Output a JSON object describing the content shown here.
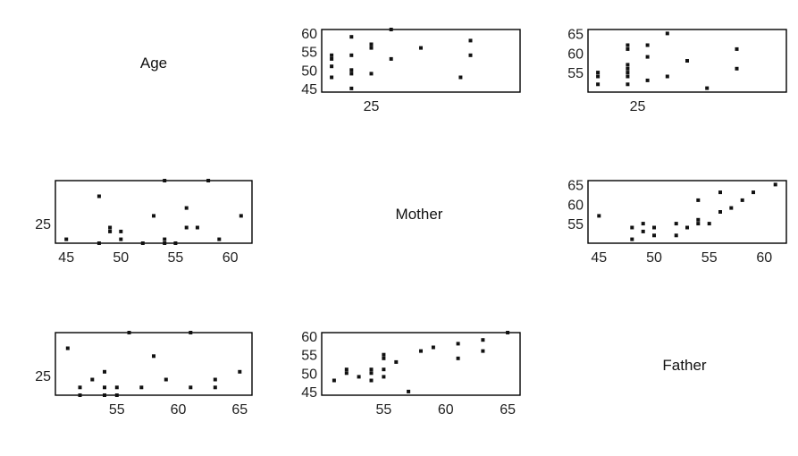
{
  "chart_data": {
    "type": "scatter",
    "title": "",
    "grid": false,
    "legend": "none",
    "colors": {
      "point": "#111111",
      "frame": "#000000"
    },
    "variables": [
      "Age",
      "Mother",
      "Father"
    ],
    "pairs": [
      {
        "id": "mother-vs-age",
        "x_var": "Age",
        "y_var": "Mother",
        "xlim": [
          20,
          40
        ],
        "ylim": [
          44,
          61
        ],
        "x_ticks": [
          25
        ],
        "y_ticks": [
          45,
          50,
          55,
          60
        ],
        "points": [
          [
            21,
            48
          ],
          [
            21,
            51
          ],
          [
            21,
            53
          ],
          [
            21,
            54
          ],
          [
            23,
            45
          ],
          [
            23,
            49
          ],
          [
            23,
            50
          ],
          [
            23,
            54
          ],
          [
            23,
            59
          ],
          [
            25,
            49
          ],
          [
            25,
            56
          ],
          [
            25,
            57
          ],
          [
            27,
            53
          ],
          [
            27,
            61
          ],
          [
            30,
            56
          ],
          [
            34,
            48
          ],
          [
            35,
            54
          ],
          [
            35,
            58
          ]
        ]
      },
      {
        "id": "father-vs-age",
        "x_var": "Age",
        "y_var": "Father",
        "xlim": [
          20,
          40
        ],
        "ylim": [
          50,
          66
        ],
        "x_ticks": [
          25
        ],
        "y_ticks": [
          55,
          60,
          65
        ],
        "points": [
          [
            21,
            52
          ],
          [
            21,
            54
          ],
          [
            21,
            55
          ],
          [
            24,
            52
          ],
          [
            24,
            54
          ],
          [
            24,
            55
          ],
          [
            24,
            56
          ],
          [
            24,
            57
          ],
          [
            24,
            61
          ],
          [
            24,
            62
          ],
          [
            26,
            53
          ],
          [
            26,
            59
          ],
          [
            26,
            62
          ],
          [
            28,
            54
          ],
          [
            28,
            65
          ],
          [
            30,
            58
          ],
          [
            32,
            51
          ],
          [
            35,
            56
          ],
          [
            35,
            61
          ]
        ]
      },
      {
        "id": "age-vs-mother",
        "x_var": "Mother",
        "y_var": "Age",
        "xlim": [
          44,
          62
        ],
        "ylim": [
          20,
          36
        ],
        "x_ticks": [
          45,
          50,
          55,
          60
        ],
        "y_ticks": [
          25
        ],
        "points": [
          [
            45,
            21
          ],
          [
            48,
            20
          ],
          [
            48,
            32
          ],
          [
            49,
            24
          ],
          [
            49,
            23
          ],
          [
            50,
            21
          ],
          [
            50,
            23
          ],
          [
            52,
            20
          ],
          [
            53,
            27
          ],
          [
            54,
            20
          ],
          [
            54,
            21
          ],
          [
            54,
            36
          ],
          [
            55,
            20
          ],
          [
            56,
            24
          ],
          [
            56,
            29
          ],
          [
            57,
            24
          ],
          [
            58,
            36
          ],
          [
            59,
            21
          ],
          [
            61,
            27
          ]
        ]
      },
      {
        "id": "father-vs-mother",
        "x_var": "Mother",
        "y_var": "Father",
        "xlim": [
          44,
          62
        ],
        "ylim": [
          50,
          66
        ],
        "x_ticks": [
          45,
          50,
          55,
          60
        ],
        "y_ticks": [
          55,
          60,
          65
        ],
        "points": [
          [
            45,
            57
          ],
          [
            48,
            51
          ],
          [
            48,
            54
          ],
          [
            49,
            53
          ],
          [
            49,
            55
          ],
          [
            50,
            52
          ],
          [
            50,
            54
          ],
          [
            52,
            52
          ],
          [
            52,
            55
          ],
          [
            53,
            54
          ],
          [
            54,
            55
          ],
          [
            54,
            56
          ],
          [
            54,
            61
          ],
          [
            55,
            55
          ],
          [
            56,
            58
          ],
          [
            56,
            63
          ],
          [
            57,
            59
          ],
          [
            58,
            61
          ],
          [
            59,
            63
          ],
          [
            61,
            65
          ]
        ]
      },
      {
        "id": "age-vs-father",
        "x_var": "Father",
        "y_var": "Age",
        "xlim": [
          50,
          66
        ],
        "ylim": [
          20,
          36
        ],
        "x_ticks": [
          55,
          60,
          65
        ],
        "y_ticks": [
          25
        ],
        "points": [
          [
            51,
            32
          ],
          [
            52,
            20
          ],
          [
            52,
            22
          ],
          [
            53,
            24
          ],
          [
            54,
            20
          ],
          [
            54,
            22
          ],
          [
            54,
            26
          ],
          [
            55,
            20
          ],
          [
            55,
            22
          ],
          [
            56,
            36
          ],
          [
            57,
            22
          ],
          [
            58,
            30
          ],
          [
            59,
            24
          ],
          [
            61,
            22
          ],
          [
            61,
            36
          ],
          [
            63,
            22
          ],
          [
            63,
            24
          ],
          [
            65,
            26
          ]
        ]
      },
      {
        "id": "mother-vs-father",
        "x_var": "Father",
        "y_var": "Mother",
        "xlim": [
          50,
          66
        ],
        "ylim": [
          44,
          61
        ],
        "x_ticks": [
          55,
          60,
          65
        ],
        "y_ticks": [
          45,
          50,
          55,
          60
        ],
        "points": [
          [
            51,
            48
          ],
          [
            52,
            50
          ],
          [
            52,
            51
          ],
          [
            53,
            49
          ],
          [
            54,
            48
          ],
          [
            54,
            50
          ],
          [
            54,
            51
          ],
          [
            55,
            49
          ],
          [
            55,
            51
          ],
          [
            55,
            54
          ],
          [
            55,
            55
          ],
          [
            56,
            53
          ],
          [
            57,
            45
          ],
          [
            58,
            56
          ],
          [
            59,
            57
          ],
          [
            61,
            54
          ],
          [
            61,
            58
          ],
          [
            63,
            56
          ],
          [
            63,
            59
          ],
          [
            65,
            61
          ]
        ]
      }
    ]
  }
}
